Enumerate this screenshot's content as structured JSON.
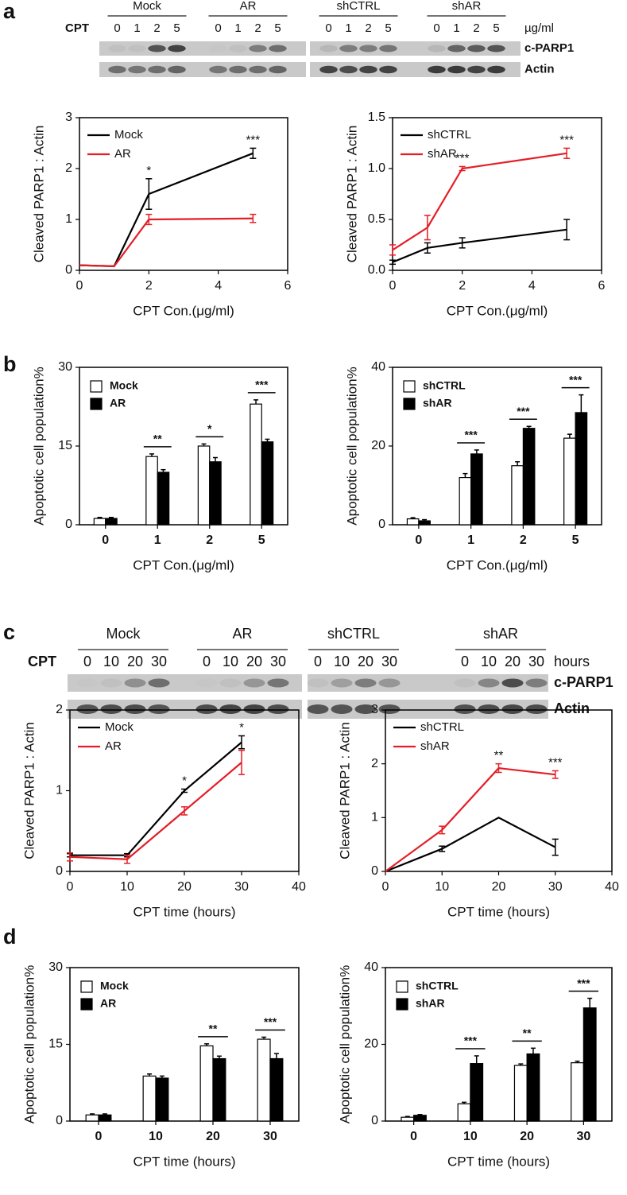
{
  "panel_labels": [
    "a",
    "b",
    "c",
    "d"
  ],
  "blots": [
    {
      "treatment": "CPT",
      "groups": [
        "Mock",
        "AR",
        "shCTRL",
        "shAR"
      ],
      "lanes": [
        "0",
        "1",
        "2",
        "5"
      ],
      "unit": "µg/ml",
      "rows": [
        "c-PARP1",
        "Actin"
      ]
    },
    {
      "treatment": "CPT",
      "groups": [
        "Mock",
        "AR",
        "shCTRL",
        "shAR"
      ],
      "lanes": [
        "0",
        "10",
        "20",
        "30"
      ],
      "unit": "hours",
      "rows": [
        "c-PARP1",
        "Actin"
      ]
    }
  ],
  "chart_data": [
    {
      "type": "line",
      "x_label": "CPT Con.(μg/ml)",
      "y_label": "Cleaved PARP1 : Actin",
      "x": [
        0,
        1,
        2,
        5
      ],
      "xlim": [
        0,
        6
      ],
      "xticks": [
        0,
        2,
        4,
        6
      ],
      "ylim": [
        0,
        3
      ],
      "yticks": [
        0,
        1,
        2,
        3
      ],
      "legend": "upper left",
      "series": [
        {
          "name": "Mock",
          "color": "#000000",
          "values": [
            0.1,
            0.08,
            1.5,
            2.3
          ],
          "errors": [
            0,
            0,
            0.3,
            0.1
          ]
        },
        {
          "name": "AR",
          "color": "#e41e26",
          "values": [
            0.1,
            0.08,
            1.0,
            1.02
          ],
          "errors": [
            0,
            0,
            0.1,
            0.08
          ]
        }
      ],
      "annotations": [
        {
          "text": "*",
          "x": 2
        },
        {
          "text": "***",
          "x": 5
        }
      ]
    },
    {
      "type": "line",
      "x_label": "CPT Con.(μg/ml)",
      "y_label": "Cleaved PARP1 : Actin",
      "x": [
        0,
        1,
        2,
        5
      ],
      "xlim": [
        0,
        6
      ],
      "xticks": [
        0,
        2,
        4,
        6
      ],
      "ylim": [
        0,
        1.5
      ],
      "yticks": [
        {
          "value": 0,
          "label": "0.0"
        },
        0.5,
        {
          "value": 1,
          "label": "1.0"
        },
        1.5
      ],
      "legend": "upper left",
      "series": [
        {
          "name": "shCTRL",
          "color": "#000000",
          "values": [
            0.08,
            0.22,
            0.27,
            0.4
          ],
          "errors": [
            0.02,
            0.05,
            0.05,
            0.1
          ]
        },
        {
          "name": "shAR",
          "color": "#e41e26",
          "values": [
            0.2,
            0.42,
            1.0,
            1.15
          ],
          "errors": [
            0.05,
            0.12,
            0.02,
            0.05
          ]
        }
      ],
      "annotations": [
        {
          "text": "***",
          "x": 2
        },
        {
          "text": "***",
          "x": 5
        }
      ]
    },
    {
      "type": "bar",
      "x_label": "CPT Con.(μg/ml)",
      "y_label": "Apoptotic cell population%",
      "categories": [
        "0",
        "1",
        "2",
        "5"
      ],
      "ylim": [
        0,
        30
      ],
      "yticks": [
        0,
        15,
        30
      ],
      "legend": "upper left",
      "series": [
        {
          "name": "Mock",
          "color": "#ffffff",
          "values": [
            1.2,
            13,
            15,
            23
          ],
          "errors": [
            0.2,
            0.5,
            0.4,
            0.8
          ]
        },
        {
          "name": "AR",
          "color": "#000000",
          "values": [
            1.2,
            10,
            12,
            15.8
          ],
          "errors": [
            0.2,
            0.5,
            0.8,
            0.5
          ]
        }
      ],
      "annotations": [
        {
          "text": "**",
          "category": "1"
        },
        {
          "text": "*",
          "category": "2"
        },
        {
          "text": "***",
          "category": "5"
        }
      ]
    },
    {
      "type": "bar",
      "x_label": "CPT Con.(μg/ml)",
      "y_label": "Apoptotic cell population%",
      "categories": [
        "0",
        "1",
        "2",
        "5"
      ],
      "ylim": [
        0,
        40
      ],
      "yticks": [
        0,
        20,
        40
      ],
      "legend": "upper left",
      "series": [
        {
          "name": "shCTRL",
          "color": "#ffffff",
          "values": [
            1.5,
            12,
            15,
            22
          ],
          "errors": [
            0.3,
            1,
            1,
            1
          ]
        },
        {
          "name": "shAR",
          "color": "#000000",
          "values": [
            1,
            18,
            24.5,
            28.5
          ],
          "errors": [
            0.3,
            1,
            0.5,
            4.5
          ]
        }
      ],
      "annotations": [
        {
          "text": "***",
          "category": "1"
        },
        {
          "text": "***",
          "category": "2"
        },
        {
          "text": "***",
          "category": "5"
        }
      ]
    },
    {
      "type": "line",
      "x_label": "CPT time (hours)",
      "y_label": "Cleaved PARP1 : Actin",
      "x": [
        0,
        10,
        20,
        30
      ],
      "xlim": [
        0,
        40
      ],
      "xticks": [
        0,
        10,
        20,
        30,
        40
      ],
      "ylim": [
        0,
        2
      ],
      "yticks": [
        0,
        1,
        2
      ],
      "legend": "upper left",
      "series": [
        {
          "name": "Mock",
          "color": "#000000",
          "values": [
            0.2,
            0.2,
            1.0,
            1.6
          ],
          "errors": [
            0.02,
            0.02,
            0.02,
            0.08
          ]
        },
        {
          "name": "AR",
          "color": "#e41e26",
          "values": [
            0.18,
            0.15,
            0.75,
            1.35
          ],
          "errors": [
            0.05,
            0.05,
            0.05,
            0.15
          ]
        }
      ],
      "annotations": [
        {
          "text": "*",
          "x": 20
        },
        {
          "text": "*",
          "x": 30
        }
      ]
    },
    {
      "type": "line",
      "x_label": "CPT time (hours)",
      "y_label": "Cleaved PARP1 : Actin",
      "x": [
        0,
        10,
        20,
        30
      ],
      "xlim": [
        0,
        40
      ],
      "xticks": [
        0,
        10,
        20,
        30,
        40
      ],
      "ylim": [
        0,
        3
      ],
      "yticks": [
        0,
        1,
        2,
        3
      ],
      "legend": "upper left",
      "series": [
        {
          "name": "shCTRL",
          "color": "#000000",
          "values": [
            0,
            0.42,
            1.0,
            0.45
          ],
          "errors": [
            0,
            0.05,
            0,
            0.15
          ]
        },
        {
          "name": "shAR",
          "color": "#e41e26",
          "values": [
            0,
            0.77,
            1.92,
            1.8
          ],
          "errors": [
            0,
            0.07,
            0.08,
            0.07
          ]
        }
      ],
      "annotations": [
        {
          "text": "**",
          "x": 20
        },
        {
          "text": "***",
          "x": 30
        }
      ]
    },
    {
      "type": "bar",
      "x_label": "CPT time (hours)",
      "y_label": "Apoptotic cell population%",
      "categories": [
        "0",
        "10",
        "20",
        "30"
      ],
      "ylim": [
        0,
        30
      ],
      "yticks": [
        0,
        15,
        30
      ],
      "legend": "upper left",
      "series": [
        {
          "name": "Mock",
          "color": "#ffffff",
          "values": [
            1.2,
            8.8,
            14.7,
            16
          ],
          "errors": [
            0.2,
            0.4,
            0.4,
            0.4
          ]
        },
        {
          "name": "AR",
          "color": "#000000",
          "values": [
            1.2,
            8.4,
            12.2,
            12.2
          ],
          "errors": [
            0.2,
            0.4,
            0.5,
            1
          ]
        }
      ],
      "annotations": [
        {
          "text": "**",
          "category": "20"
        },
        {
          "text": "***",
          "category": "30"
        }
      ]
    },
    {
      "type": "bar",
      "x_label": "CPT time (hours)",
      "y_label": "Apoptotic cell population%",
      "categories": [
        "0",
        "10",
        "20",
        "30"
      ],
      "ylim": [
        0,
        40
      ],
      "yticks": [
        0,
        20,
        40
      ],
      "legend": "upper left",
      "series": [
        {
          "name": "shCTRL",
          "color": "#ffffff",
          "values": [
            1,
            4.5,
            14.5,
            15.2
          ],
          "errors": [
            0.2,
            0.4,
            0.4,
            0.4
          ]
        },
        {
          "name": "shAR",
          "color": "#000000",
          "values": [
            1.5,
            15,
            17.5,
            29.5
          ],
          "errors": [
            0.2,
            2,
            1.5,
            2.5
          ]
        }
      ],
      "annotations": [
        {
          "text": "***",
          "category": "10"
        },
        {
          "text": "**",
          "category": "20"
        },
        {
          "text": "***",
          "category": "30"
        }
      ]
    }
  ]
}
